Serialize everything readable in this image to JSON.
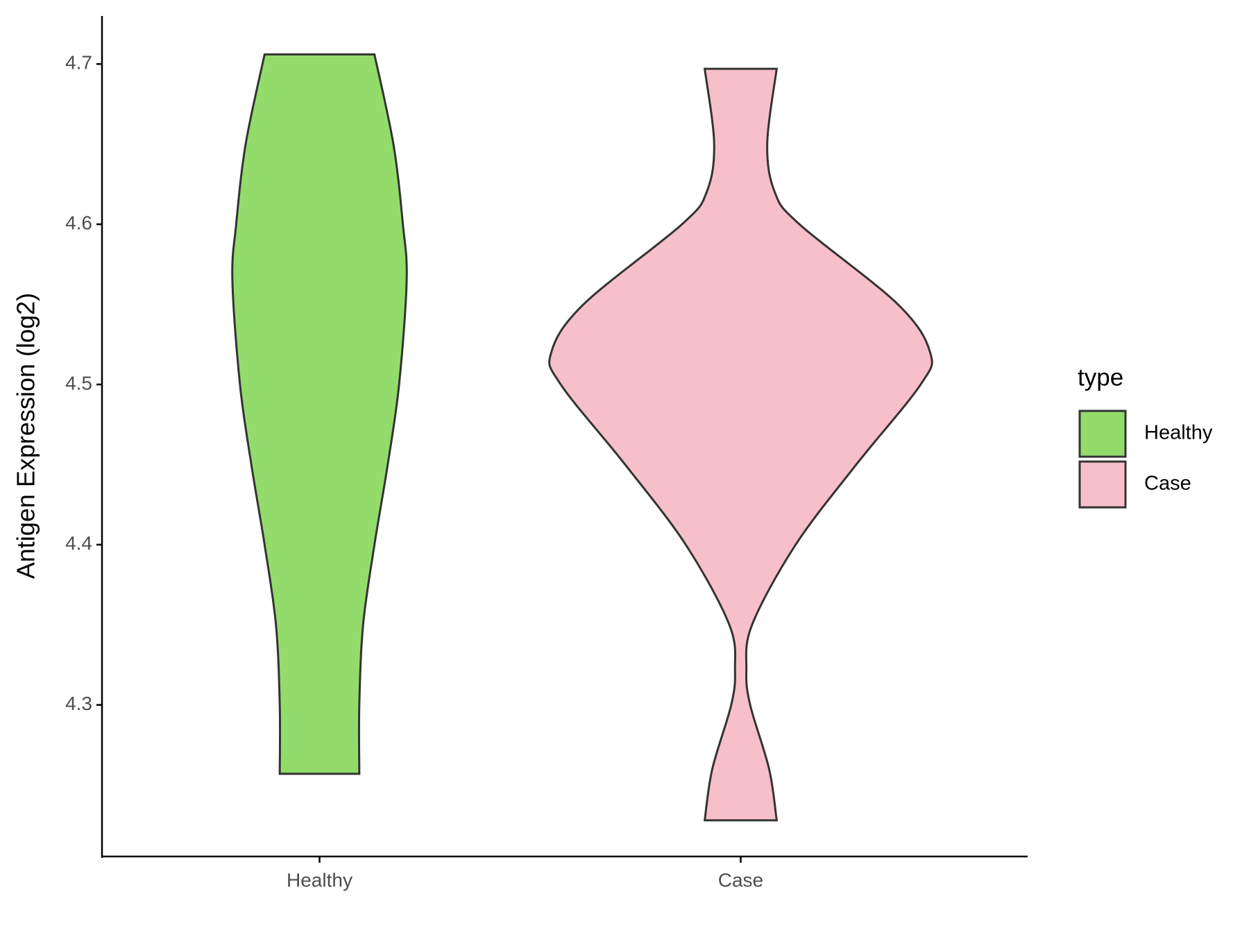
{
  "chart_data": {
    "type": "violin",
    "y_label": "Antigen Expression (log2)",
    "categories": [
      "Healthy",
      "Case"
    ],
    "legend_title": "type",
    "legend_position": "right",
    "series": [
      {
        "name": "Healthy",
        "color": "#93dc6b",
        "y": [
          4.706,
          4.65,
          4.6,
          4.565,
          4.5,
          4.45,
          4.4,
          4.35,
          4.3,
          4.257
        ],
        "density": [
          0.29,
          0.39,
          0.44,
          0.46,
          0.42,
          0.36,
          0.29,
          0.23,
          0.21,
          0.21
        ]
      },
      {
        "name": "Case",
        "color": "#f7bfca",
        "y": [
          4.697,
          4.65,
          4.62,
          4.6,
          4.55,
          4.52,
          4.5,
          4.45,
          4.4,
          4.35,
          4.322,
          4.3,
          4.26,
          4.228
        ],
        "density": [
          0.19,
          0.14,
          0.18,
          0.31,
          0.83,
          1.0,
          0.95,
          0.61,
          0.29,
          0.06,
          0.03,
          0.05,
          0.15,
          0.19
        ]
      }
    ],
    "ylim": [
      4.2054,
      4.73
    ],
    "yticks": [
      4.3,
      4.4,
      4.5,
      4.6,
      4.7
    ],
    "grid": false
  }
}
